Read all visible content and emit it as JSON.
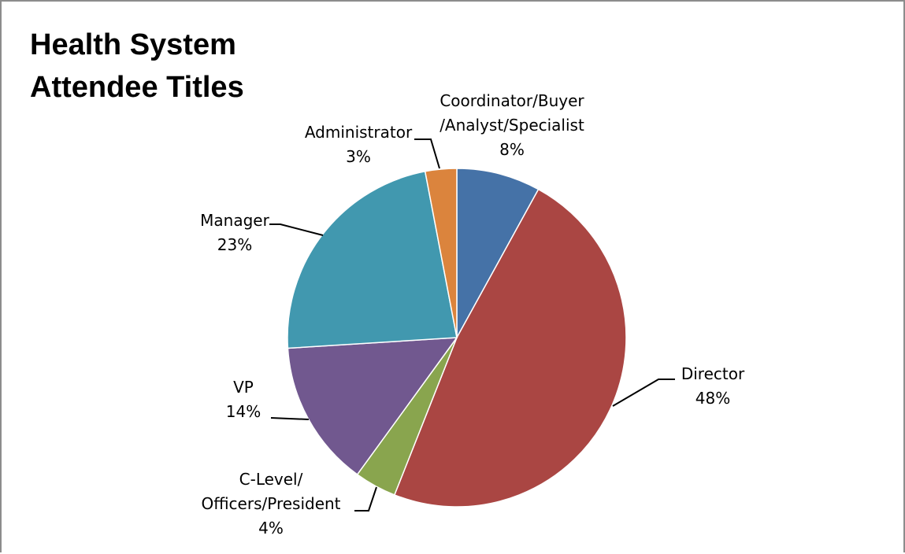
{
  "chart_data": {
    "type": "pie",
    "title": "Health System\nAttendee Titles",
    "slices": [
      {
        "name": "Coordinator/Buyer /Analyst/Specialist",
        "label_lines": [
          "Coordinator/Buyer",
          "/Analyst/Specialist"
        ],
        "percent_label": "8%",
        "value": 8,
        "color": "#4572a7"
      },
      {
        "name": "Director",
        "label_lines": [
          "Director"
        ],
        "percent_label": "48%",
        "value": 48,
        "color": "#aa4643"
      },
      {
        "name": "C-Level/ Officers/President",
        "label_lines": [
          "C-Level/",
          "Officers/President"
        ],
        "percent_label": "4%",
        "value": 4,
        "color": "#89a54e"
      },
      {
        "name": "VP",
        "label_lines": [
          "VP"
        ],
        "percent_label": "14%",
        "value": 14,
        "color": "#71588f"
      },
      {
        "name": "Manager",
        "label_lines": [
          "Manager"
        ],
        "percent_label": "23%",
        "value": 23,
        "color": "#4198af"
      },
      {
        "name": "Administrator",
        "label_lines": [
          "Administrator"
        ],
        "percent_label": "3%",
        "value": 3,
        "color": "#db843d"
      }
    ],
    "legend": "none",
    "start_angle": "12 o'clock",
    "direction": "clockwise"
  }
}
